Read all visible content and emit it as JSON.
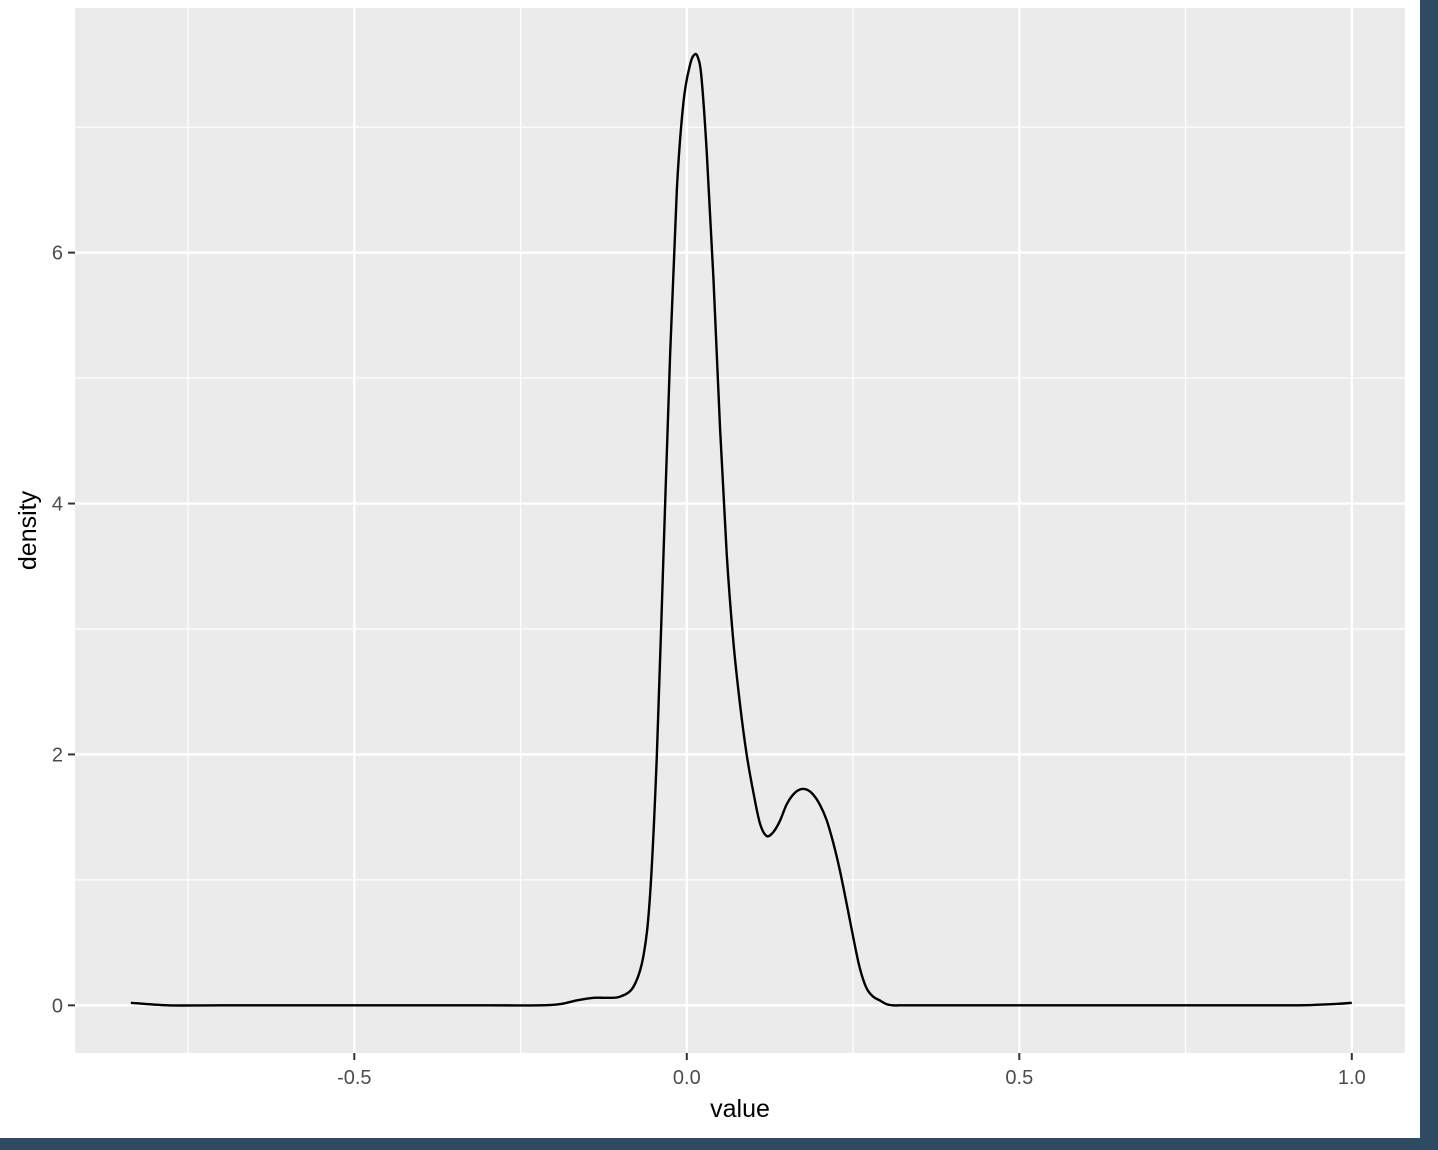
{
  "chart_data": {
    "type": "line",
    "title": "",
    "xlabel": "value",
    "ylabel": "density",
    "xlim": [
      -0.92,
      1.08
    ],
    "ylim": [
      -0.38,
      7.95
    ],
    "x_ticks": [
      -0.5,
      0.0,
      0.5,
      1.0
    ],
    "x_tick_labels": [
      "-0.5",
      "0.0",
      "0.5",
      "1.0"
    ],
    "x_minor_ticks": [
      -0.75,
      -0.25,
      0.25,
      0.75
    ],
    "y_ticks": [
      0,
      2,
      4,
      6
    ],
    "y_tick_labels": [
      "0",
      "2",
      "4",
      "6"
    ],
    "y_minor_ticks": [
      1,
      3,
      5,
      7
    ],
    "grid": true,
    "legend": "none",
    "colors": {
      "panel": "#ebebeb",
      "grid": "#ffffff",
      "line": "#000000",
      "background": "#2f4a63"
    },
    "series": [
      {
        "x": [
          -0.836,
          -0.78,
          -0.7,
          -0.5,
          -0.3,
          -0.22,
          -0.19,
          -0.165,
          -0.14,
          -0.12,
          -0.1,
          -0.08,
          -0.065,
          -0.055,
          -0.045,
          -0.035,
          -0.025,
          -0.015,
          -0.005,
          0.005,
          0.012,
          0.017,
          0.022,
          0.03,
          0.04,
          0.05,
          0.06,
          0.07,
          0.08,
          0.09,
          0.1,
          0.11,
          0.12,
          0.13,
          0.14,
          0.15,
          0.16,
          0.17,
          0.18,
          0.19,
          0.2,
          0.21,
          0.22,
          0.23,
          0.24,
          0.25,
          0.26,
          0.27,
          0.28,
          0.29,
          0.3,
          0.31,
          0.32,
          0.33,
          0.34,
          0.35,
          0.36,
          0.38,
          0.4,
          0.43,
          0.5,
          0.7,
          0.9,
          0.95,
          0.98,
          1.0
        ],
        "y": [
          0.02,
          0.0,
          0.0,
          0.0,
          0.0,
          0.0,
          0.01,
          0.04,
          0.06,
          0.06,
          0.07,
          0.15,
          0.4,
          0.9,
          2.0,
          3.6,
          5.2,
          6.5,
          7.2,
          7.5,
          7.58,
          7.55,
          7.4,
          6.8,
          5.8,
          4.6,
          3.6,
          2.9,
          2.4,
          2.0,
          1.7,
          1.45,
          1.35,
          1.38,
          1.47,
          1.6,
          1.68,
          1.72,
          1.72,
          1.68,
          1.6,
          1.48,
          1.3,
          1.08,
          0.82,
          0.55,
          0.3,
          0.14,
          0.07,
          0.04,
          0.01,
          0.0,
          0.0,
          0.0,
          0.0,
          0.0,
          0.0,
          0.0,
          0.0,
          0.0,
          0.0,
          0.0,
          0.0,
          0.005,
          0.012,
          0.02
        ]
      }
    ]
  }
}
